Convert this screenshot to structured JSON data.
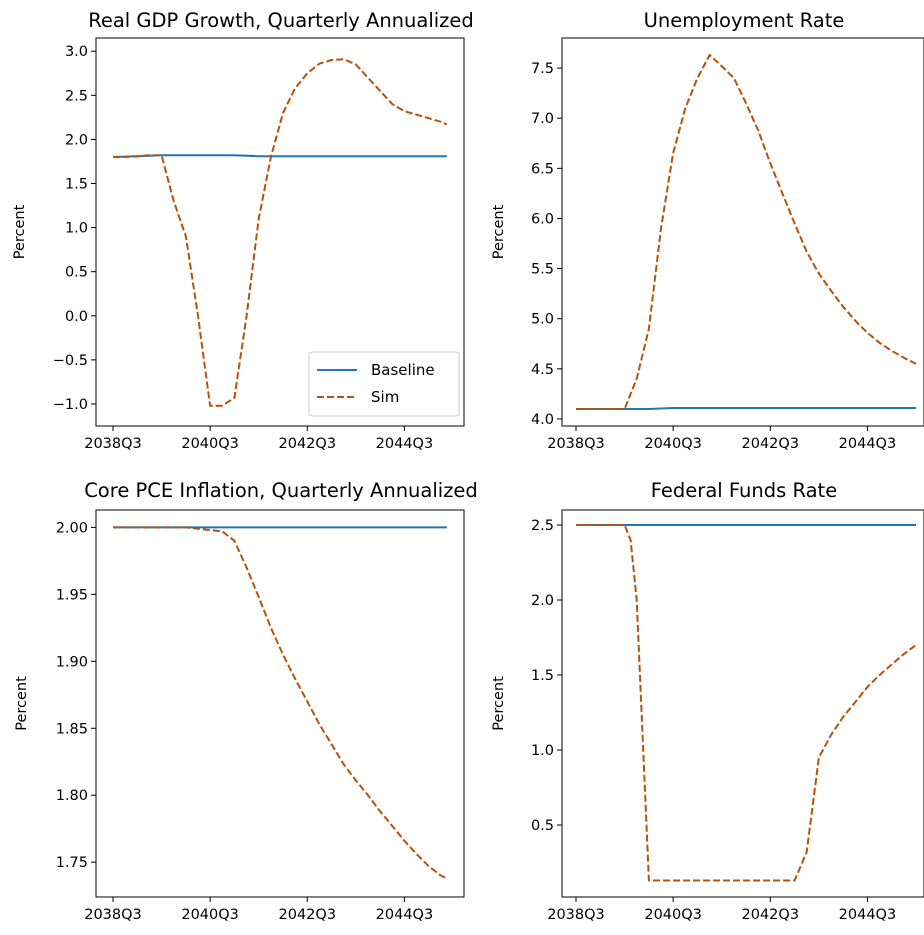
{
  "chart_data": [
    {
      "type": "line",
      "title": "Real GDP Growth, Quarterly Annualized",
      "ylabel": "Percent",
      "ylim": [
        -1.25,
        3.15
      ],
      "yticks": [
        "3.0",
        "2.5",
        "2.0",
        "1.5",
        "1.0",
        "0.5",
        "0.0",
        "−0.5",
        "−1.0"
      ],
      "ytick_values": [
        3.0,
        2.5,
        2.0,
        1.5,
        1.0,
        0.5,
        0.0,
        -0.5,
        -1.0
      ],
      "x_range": [
        0,
        28
      ],
      "xticks": [
        "2038Q3",
        "2040Q3",
        "2042Q3",
        "2044Q3"
      ],
      "xtick_values": [
        0,
        8,
        16,
        24
      ],
      "legend": {
        "position": "lower-right",
        "entries": [
          "Baseline",
          "Sim"
        ]
      },
      "series": [
        {
          "name": "Baseline",
          "style": "solid",
          "color": "#1f77b4",
          "x": [
            0,
            2,
            4,
            6,
            8,
            10,
            12,
            14,
            16,
            18,
            20,
            22,
            24,
            26,
            27.5
          ],
          "y": [
            1.8,
            1.81,
            1.82,
            1.82,
            1.82,
            1.82,
            1.81,
            1.81,
            1.81,
            1.81,
            1.81,
            1.81,
            1.81,
            1.81,
            1.81
          ]
        },
        {
          "name": "Sim",
          "style": "dashed",
          "color": "#b8510c",
          "x": [
            0,
            1,
            2,
            3,
            4,
            5,
            6,
            7,
            8,
            9,
            10,
            11,
            12,
            13,
            14,
            15,
            16,
            17,
            18,
            19,
            20,
            21,
            22,
            23,
            24,
            25,
            26,
            27,
            27.5
          ],
          "y": [
            1.8,
            1.8,
            1.81,
            1.82,
            1.82,
            1.3,
            0.9,
            0.0,
            -1.02,
            -1.02,
            -0.93,
            0.0,
            1.1,
            1.8,
            2.3,
            2.58,
            2.75,
            2.86,
            2.9,
            2.91,
            2.85,
            2.7,
            2.55,
            2.4,
            2.32,
            2.28,
            2.24,
            2.2,
            2.17
          ]
        }
      ]
    },
    {
      "type": "line",
      "title": "Unemployment Rate",
      "ylabel": "Percent",
      "ylim": [
        3.93,
        7.8
      ],
      "yticks": [
        "7.5",
        "7.0",
        "6.5",
        "6.0",
        "5.5",
        "5.0",
        "4.5",
        "4.0"
      ],
      "ytick_values": [
        7.5,
        7.0,
        6.5,
        6.0,
        5.5,
        5.0,
        4.5,
        4.0
      ],
      "x_range": [
        0,
        28
      ],
      "xticks": [
        "2038Q3",
        "2040Q3",
        "2042Q3",
        "2044Q3"
      ],
      "xtick_values": [
        0,
        8,
        16,
        24
      ],
      "series": [
        {
          "name": "Baseline",
          "style": "solid",
          "color": "#1f77b4",
          "x": [
            0,
            2,
            4,
            6,
            8,
            10,
            12,
            14,
            16,
            18,
            20,
            22,
            24,
            26,
            28
          ],
          "y": [
            4.1,
            4.1,
            4.1,
            4.1,
            4.11,
            4.11,
            4.11,
            4.11,
            4.11,
            4.11,
            4.11,
            4.11,
            4.11,
            4.11,
            4.11
          ]
        },
        {
          "name": "Sim",
          "style": "dashed",
          "color": "#b8510c",
          "x": [
            0,
            1,
            2,
            3,
            4,
            5,
            6,
            7,
            8,
            9,
            10,
            11,
            12,
            13,
            14,
            15,
            16,
            17,
            18,
            19,
            20,
            21,
            22,
            23,
            24,
            25,
            26,
            27,
            28
          ],
          "y": [
            4.1,
            4.1,
            4.1,
            4.1,
            4.1,
            4.4,
            4.9,
            5.9,
            6.65,
            7.1,
            7.4,
            7.63,
            7.52,
            7.4,
            7.15,
            6.88,
            6.55,
            6.25,
            5.95,
            5.67,
            5.45,
            5.28,
            5.12,
            4.98,
            4.86,
            4.76,
            4.68,
            4.61,
            4.55
          ]
        }
      ]
    },
    {
      "type": "line",
      "title": "Core PCE Inflation, Quarterly Annualized",
      "ylabel": "Percent",
      "ylim": [
        1.724,
        2.013
      ],
      "yticks": [
        "2.00",
        "1.95",
        "1.90",
        "1.85",
        "1.80",
        "1.75"
      ],
      "ytick_values": [
        2.0,
        1.95,
        1.9,
        1.85,
        1.8,
        1.75
      ],
      "x_range": [
        0,
        28
      ],
      "xticks": [
        "2038Q3",
        "2040Q3",
        "2042Q3",
        "2044Q3"
      ],
      "xtick_values": [
        0,
        8,
        16,
        24
      ],
      "series": [
        {
          "name": "Baseline",
          "style": "solid",
          "color": "#1f77b4",
          "x": [
            0,
            4,
            8,
            12,
            16,
            20,
            24,
            27.5
          ],
          "y": [
            2.0,
            2.0,
            2.0,
            2.0,
            2.0,
            2.0,
            2.0,
            2.0
          ]
        },
        {
          "name": "Sim",
          "style": "dashed",
          "color": "#b8510c",
          "x": [
            0,
            2,
            4,
            6,
            7,
            8,
            9,
            10,
            11,
            12,
            13,
            14,
            15,
            16,
            17,
            18,
            19,
            20,
            21,
            22,
            23,
            24,
            25,
            26,
            27,
            27.5
          ],
          "y": [
            2.0,
            2.0,
            2.0,
            2.0,
            1.999,
            1.998,
            1.997,
            1.99,
            1.97,
            1.948,
            1.925,
            1.905,
            1.887,
            1.87,
            1.853,
            1.838,
            1.823,
            1.811,
            1.8,
            1.788,
            1.777,
            1.766,
            1.756,
            1.747,
            1.74,
            1.738
          ]
        }
      ]
    },
    {
      "type": "line",
      "title": "Federal Funds Rate",
      "ylabel": "Percent",
      "ylim": [
        0.02,
        2.6
      ],
      "yticks": [
        "2.5",
        "2.0",
        "1.5",
        "1.0",
        "0.5"
      ],
      "ytick_values": [
        2.5,
        2.0,
        1.5,
        1.0,
        0.5
      ],
      "x_range": [
        0,
        28
      ],
      "xticks": [
        "2038Q3",
        "2040Q3",
        "2042Q3",
        "2044Q3"
      ],
      "xtick_values": [
        0,
        8,
        16,
        24
      ],
      "series": [
        {
          "name": "Baseline",
          "style": "solid",
          "color": "#1f77b4",
          "x": [
            0,
            4,
            8,
            12,
            16,
            20,
            24,
            28
          ],
          "y": [
            2.5,
            2.5,
            2.5,
            2.5,
            2.5,
            2.5,
            2.5,
            2.5
          ]
        },
        {
          "name": "Sim",
          "style": "dashed",
          "color": "#b8510c",
          "x": [
            0,
            1,
            2,
            3,
            4,
            4.5,
            5,
            6,
            7,
            8,
            9,
            10,
            11,
            12,
            13,
            14,
            15,
            16,
            17,
            18,
            19,
            20,
            21,
            22,
            23,
            24,
            25,
            26,
            27,
            28
          ],
          "y": [
            2.5,
            2.5,
            2.5,
            2.5,
            2.5,
            2.4,
            2.0,
            0.13,
            0.13,
            0.13,
            0.13,
            0.13,
            0.13,
            0.13,
            0.13,
            0.13,
            0.13,
            0.13,
            0.13,
            0.13,
            0.32,
            0.95,
            1.1,
            1.22,
            1.32,
            1.42,
            1.5,
            1.57,
            1.64,
            1.7
          ]
        }
      ]
    }
  ]
}
